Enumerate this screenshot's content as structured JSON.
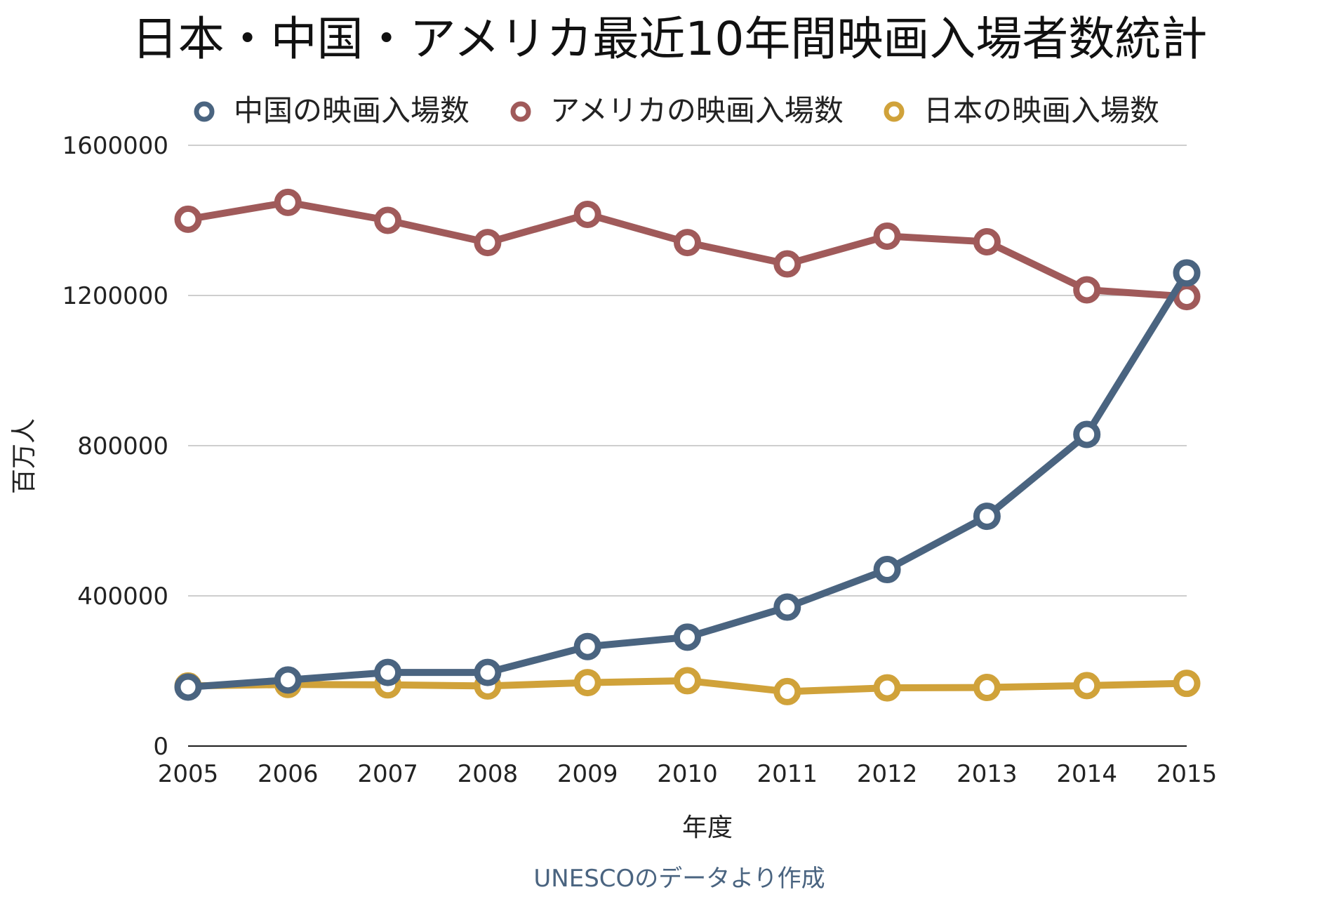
{
  "chart_data": {
    "type": "line",
    "title": "日本・中国・アメリカ最近10年間映画入場者数統計",
    "xlabel": "年度",
    "ylabel": "百万人",
    "source_note": "UNESCOのデータより作成",
    "x": [
      2005,
      2006,
      2007,
      2008,
      2009,
      2010,
      2011,
      2012,
      2013,
      2014,
      2015
    ],
    "x_tick_labels": [
      "2005",
      "2006",
      "2007",
      "2008",
      "2009",
      "2010",
      "2011",
      "2012",
      "2013",
      "2014",
      "2015"
    ],
    "y_ticks": [
      0,
      400000,
      800000,
      1200000,
      1600000
    ],
    "y_tick_labels": [
      "0",
      "400000",
      "800000",
      "1200000",
      "1600000"
    ],
    "ylim": [
      0,
      1600000
    ],
    "grid": true,
    "legend_position": "top",
    "series": [
      {
        "name": "中国の映画入場数",
        "color": "#4a6480",
        "values": [
          157000,
          176000,
          196000,
          196000,
          265000,
          290000,
          370000,
          470000,
          612000,
          830000,
          1260000
        ]
      },
      {
        "name": "アメリカの映画入場数",
        "color": "#a05a5a",
        "values": [
          1403000,
          1448000,
          1400000,
          1341000,
          1416000,
          1341000,
          1284000,
          1358000,
          1343000,
          1215000,
          1197000
        ]
      },
      {
        "name": "日本の映画入場数",
        "color": "#d0a23a",
        "values": [
          160000,
          164000,
          163000,
          160000,
          169000,
          174000,
          145000,
          155000,
          156000,
          161000,
          167000
        ]
      }
    ]
  }
}
